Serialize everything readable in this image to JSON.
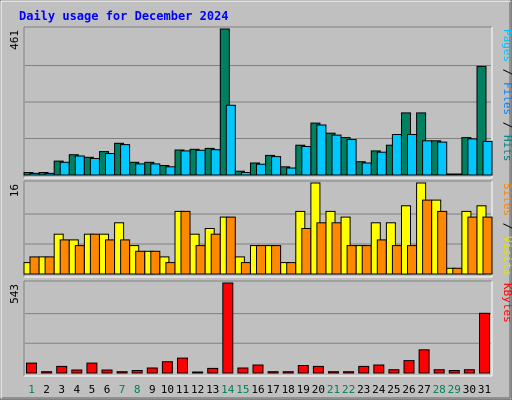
{
  "chart_data": {
    "title": "Daily usage for December 2024",
    "type": "bar",
    "categories": [
      "1",
      "2",
      "3",
      "4",
      "5",
      "6",
      "7",
      "8",
      "9",
      "10",
      "11",
      "12",
      "13",
      "14",
      "15",
      "16",
      "17",
      "18",
      "19",
      "20",
      "21",
      "22",
      "23",
      "24",
      "25",
      "26",
      "27",
      "28",
      "29",
      "30",
      "31"
    ],
    "weekend_days": [
      1,
      7,
      8,
      14,
      15,
      21,
      22,
      28,
      29
    ],
    "panels": [
      {
        "name": "hits",
        "max_label": "461",
        "ymax": 461,
        "right_labels": [
          {
            "text": "Pages",
            "color": "#00c0ff"
          },
          {
            "text": " / ",
            "color": "#000000"
          },
          {
            "text": "Files",
            "color": "#0080ff"
          },
          {
            "text": " / ",
            "color": "#000000"
          },
          {
            "text": "Hits",
            "color": "#008080"
          }
        ],
        "series": [
          {
            "name": "Hits",
            "color": "#008060",
            "values": [
              8,
              8,
              44,
              64,
              56,
              74,
              100,
              40,
              40,
              30,
              79,
              81,
              84,
              461,
              12,
              38,
              62,
              26,
              94,
              164,
              132,
              118,
              42,
              76,
              94,
              196,
              196,
              108,
              0,
              118,
              343
            ]
          },
          {
            "name": "Pages",
            "color": "#00c8ff",
            "values": [
              5,
              5,
              40,
              60,
              52,
              68,
              96,
              35,
              35,
              26,
              76,
              78,
              80,
              220,
              8,
              34,
              58,
              22,
              90,
              158,
              126,
              112,
              38,
              72,
              128,
              128,
              108,
              104,
              0,
              114,
              106
            ]
          }
        ]
      },
      {
        "name": "visits",
        "max_label": "16",
        "ymax": 16,
        "right_labels": [
          {
            "text": "Sites",
            "color": "#ff8000"
          },
          {
            "text": " / ",
            "color": "#000000"
          },
          {
            "text": "Visits",
            "color": "#e0e000"
          }
        ],
        "series": [
          {
            "name": "Visits",
            "color": "#ffff00",
            "values": [
              2,
              3,
              7,
              6,
              7,
              7,
              9,
              5,
              4,
              3,
              11,
              7,
              8,
              10,
              3,
              5,
              5,
              2,
              11,
              16,
              11,
              10,
              5,
              9,
              9,
              12,
              16,
              13,
              1,
              11,
              12
            ]
          },
          {
            "name": "Sites",
            "color": "#ff8800",
            "values": [
              3,
              3,
              6,
              5,
              7,
              6,
              6,
              4,
              4,
              2,
              11,
              5,
              7,
              10,
              2,
              5,
              5,
              2,
              8,
              9,
              9,
              5,
              5,
              6,
              5,
              5,
              13,
              11,
              1,
              10,
              10
            ]
          }
        ]
      },
      {
        "name": "kbytes",
        "max_label": "543",
        "ymax": 543,
        "right_labels": [
          {
            "text": "KBytes",
            "color": "#ff0000"
          }
        ],
        "series": [
          {
            "name": "KBytes",
            "color": "#ff0000",
            "values": [
              60,
              8,
              40,
              18,
              60,
              18,
              8,
              15,
              30,
              68,
              90,
              3,
              28,
              543,
              30,
              48,
              8,
              8,
              45,
              40,
              8,
              8,
              40,
              48,
              20,
              75,
              140,
              20,
              15,
              20,
              360
            ]
          }
        ]
      }
    ]
  }
}
